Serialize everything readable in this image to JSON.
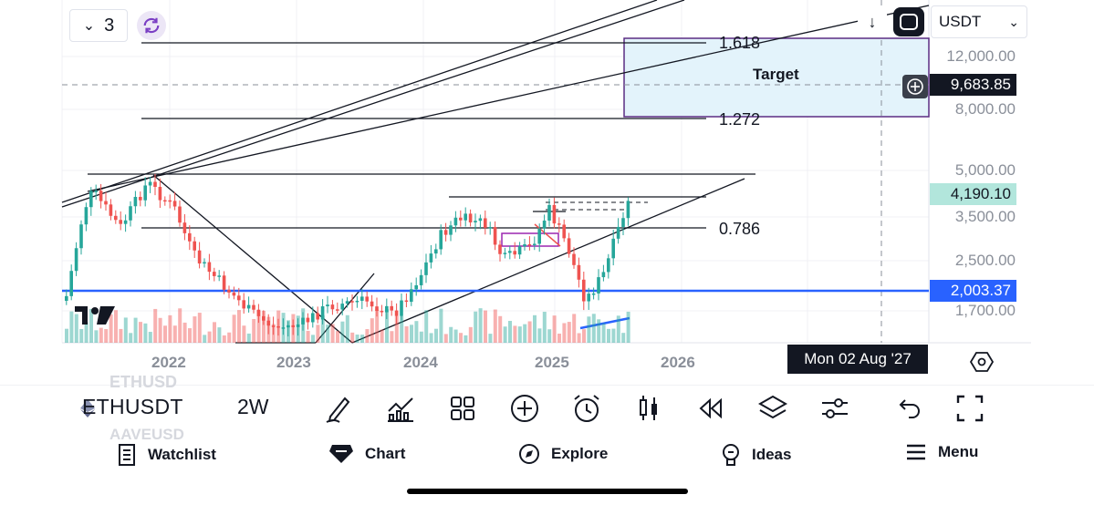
{
  "top_controls": {
    "interval_count": "3",
    "currency_select": "USDT"
  },
  "price_axis": {
    "labels": [
      "12,000.00",
      "8,000.00",
      "5,000.00",
      "3,500.00",
      "2,500.00",
      "1,700.00"
    ],
    "current_price": "4,190.10",
    "crosshair_price": "9,683.85",
    "horizontal_line_price": "2,003.37"
  },
  "time_axis": {
    "labels": [
      "2022",
      "2023",
      "2024",
      "2025",
      "2026"
    ],
    "crosshair_date": "Mon 02 Aug '27"
  },
  "drawings": {
    "fib_1618": "1.618",
    "fib_1272": "1.272",
    "fib_0786": "0.786",
    "target_label": "Target"
  },
  "colors": {
    "up_candle": "#26a69a",
    "down_candle": "#ef5350",
    "blue_line": "#2962ff",
    "target_fill": "#e3f3fb",
    "target_border": "#5b2c83"
  },
  "toolbar": {
    "symbol": "ETHUSDT",
    "interval": "2W",
    "ghost_above": "ETHUSD",
    "ghost_below": "AAVEUSD",
    "icons": [
      "eth-logo-icon",
      "pen-drawing-icon",
      "indicators-icon",
      "grid-icon",
      "add-icon",
      "alarm-icon",
      "candles-icon",
      "replay-icon",
      "layers-icon",
      "sliders-icon",
      "undo-icon",
      "fullscreen-icon"
    ]
  },
  "bottom_nav": {
    "watchlist": "Watchlist",
    "chart": "Chart",
    "explore": "Explore",
    "ideas": "Ideas",
    "menu": "Menu"
  }
}
